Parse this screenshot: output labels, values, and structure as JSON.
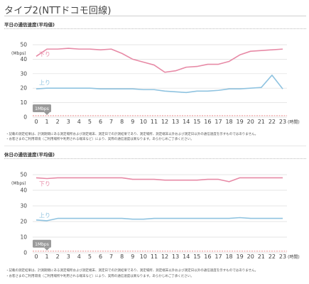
{
  "page_title": "タイプ2(NTTドコモ回線)",
  "colors": {
    "down": "#e78aa6",
    "up": "#8fc3e0",
    "min": "#e87a7a",
    "grid": "#dddddd",
    "axis_text": "#444444",
    "label_bg": "#9a9a9a"
  },
  "common": {
    "ylabel": "(Mbps)",
    "xlabel": "(時間)",
    "down_label": "下り",
    "up_label": "上り",
    "min_label": "1Mbps"
  },
  "sections": [
    {
      "title": "平日の通信速度(平均値)",
      "notes": [
        "・記載の測定結果は、計測期間にある測定場所および測定端末、測定日での計測結果であり、測定場所、測定端末以外および測定日以外の通信速度を示すものではありません。",
        "・お客さまのご利用環境（ご利用場所や利用される端末など）により、実際の通信速度は異なります。あらかじめご了承ください。"
      ]
    },
    {
      "title": "休日の通信速度(平均値)",
      "notes": [
        "・記載の測定結果は、計測期間にある測定場所および測定端末、測定日での計測結果であり、測定場所、測定端末以外および測定日以外の通信速度を示すものではありません。",
        "・お客さまのご利用環境（ご利用場所や利用される端末など）により、実際の通信速度は異なります。あらかじめご了承ください。"
      ]
    }
  ],
  "chart_data": [
    {
      "type": "line",
      "x": [
        0,
        1,
        2,
        3,
        4,
        5,
        6,
        7,
        8,
        9,
        10,
        11,
        12,
        13,
        14,
        15,
        16,
        17,
        18,
        19,
        20,
        21,
        22,
        23
      ],
      "xlabel": "(時間)",
      "ylabel": "(Mbps)",
      "ylim": [
        0,
        50
      ],
      "yticks": [
        0,
        10,
        20,
        30,
        40,
        50
      ],
      "threshold": 1,
      "series": [
        {
          "name": "下り",
          "values": [
            42,
            47,
            47,
            47.5,
            47,
            47,
            46.5,
            47,
            44,
            40,
            38,
            36,
            31,
            32,
            34.5,
            35,
            36.5,
            36.5,
            38.5,
            43,
            45.5,
            46,
            46.5,
            47
          ]
        },
        {
          "name": "上り",
          "values": [
            19.5,
            20,
            20,
            20,
            20,
            20,
            19.5,
            19.5,
            19.5,
            19.5,
            19,
            19,
            18,
            17.5,
            17,
            18,
            18,
            18.5,
            19.5,
            19.5,
            20,
            20.5,
            29,
            19.5
          ]
        }
      ]
    },
    {
      "type": "line",
      "x": [
        0,
        1,
        2,
        3,
        4,
        5,
        6,
        7,
        8,
        9,
        10,
        11,
        12,
        13,
        14,
        15,
        16,
        17,
        18,
        19,
        20,
        21,
        22,
        23
      ],
      "xlabel": "(時間)",
      "ylabel": "(Mbps)",
      "ylim": [
        0,
        50
      ],
      "yticks": [
        0,
        10,
        20,
        30,
        40,
        50
      ],
      "threshold": 1,
      "series": [
        {
          "name": "下り",
          "values": [
            48,
            47.5,
            48,
            48,
            48,
            48,
            48,
            48,
            48,
            47,
            47,
            47,
            46.5,
            46.5,
            46.5,
            46.5,
            47,
            47,
            45.5,
            48,
            48,
            48,
            48,
            48
          ]
        },
        {
          "name": "上り",
          "values": [
            21,
            20.5,
            22,
            22,
            22,
            22,
            22,
            22,
            22,
            21.5,
            21.5,
            22,
            22,
            22,
            22,
            22,
            22,
            22,
            22,
            22.5,
            22,
            22,
            22,
            22
          ]
        }
      ]
    }
  ]
}
